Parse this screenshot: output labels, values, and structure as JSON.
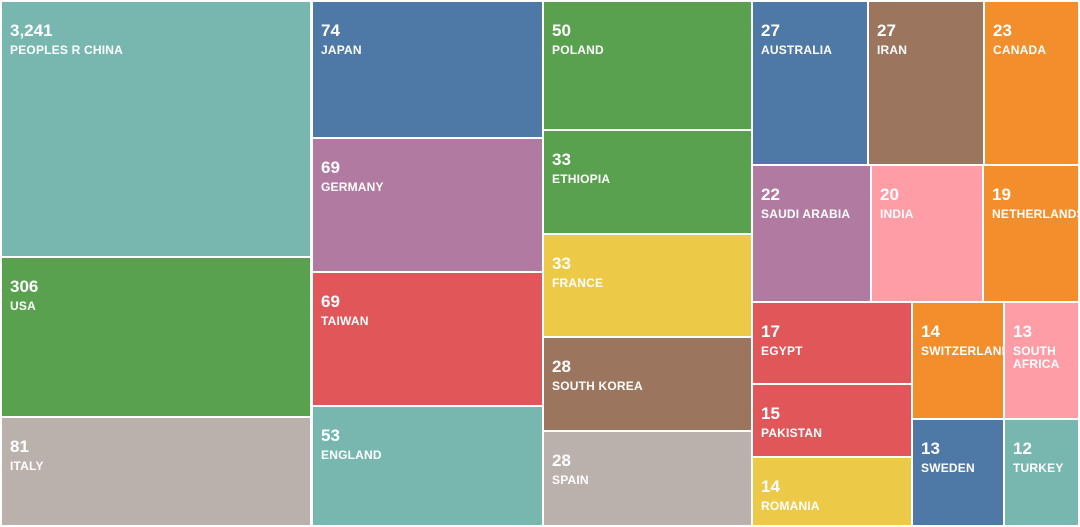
{
  "chart_data": {
    "type": "treemap",
    "title": "",
    "colors": {
      "teal": "#77b7b0",
      "blue": "#4e79a7",
      "green": "#59a14f",
      "purple": "#b07aa1",
      "red": "#e15759",
      "yellow": "#edc948",
      "brown": "#9c755f",
      "gray": "#bab0ac",
      "orange": "#f28e2b",
      "pink": "#ff9da7"
    },
    "items": [
      {
        "label": "PEOPLES R CHINA",
        "value": 3241,
        "value_text": "3,241",
        "color": "teal"
      },
      {
        "label": "USA",
        "value": 306,
        "value_text": "306",
        "color": "green"
      },
      {
        "label": "ITALY",
        "value": 81,
        "value_text": "81",
        "color": "gray"
      },
      {
        "label": "JAPAN",
        "value": 74,
        "value_text": "74",
        "color": "blue"
      },
      {
        "label": "GERMANY",
        "value": 69,
        "value_text": "69",
        "color": "purple"
      },
      {
        "label": "TAIWAN",
        "value": 69,
        "value_text": "69",
        "color": "red"
      },
      {
        "label": "ENGLAND",
        "value": 53,
        "value_text": "53",
        "color": "teal"
      },
      {
        "label": "POLAND",
        "value": 50,
        "value_text": "50",
        "color": "green"
      },
      {
        "label": "ETHIOPIA",
        "value": 33,
        "value_text": "33",
        "color": "green"
      },
      {
        "label": "FRANCE",
        "value": 33,
        "value_text": "33",
        "color": "yellow"
      },
      {
        "label": "SOUTH KOREA",
        "value": 28,
        "value_text": "28",
        "color": "brown"
      },
      {
        "label": "SPAIN",
        "value": 28,
        "value_text": "28",
        "color": "gray"
      },
      {
        "label": "AUSTRALIA",
        "value": 27,
        "value_text": "27",
        "color": "blue"
      },
      {
        "label": "IRAN",
        "value": 27,
        "value_text": "27",
        "color": "brown"
      },
      {
        "label": "CANADA",
        "value": 23,
        "value_text": "23",
        "color": "orange"
      },
      {
        "label": "SAUDI ARABIA",
        "value": 22,
        "value_text": "22",
        "color": "purple"
      },
      {
        "label": "INDIA",
        "value": 20,
        "value_text": "20",
        "color": "pink"
      },
      {
        "label": "NETHERLANDS",
        "value": 19,
        "value_text": "19",
        "color": "orange"
      },
      {
        "label": "EGYPT",
        "value": 17,
        "value_text": "17",
        "color": "red"
      },
      {
        "label": "PAKISTAN",
        "value": 15,
        "value_text": "15",
        "color": "red"
      },
      {
        "label": "ROMANIA",
        "value": 14,
        "value_text": "14",
        "color": "yellow"
      },
      {
        "label": "SWITZERLAND",
        "value": 14,
        "value_text": "14",
        "color": "orange"
      },
      {
        "label": "SOUTH AFRICA",
        "value": 13,
        "value_text": "13",
        "color": "pink"
      },
      {
        "label": "SWEDEN",
        "value": 13,
        "value_text": "13",
        "color": "blue"
      },
      {
        "label": "TURKEY",
        "value": 12,
        "value_text": "12",
        "color": "teal"
      }
    ]
  }
}
